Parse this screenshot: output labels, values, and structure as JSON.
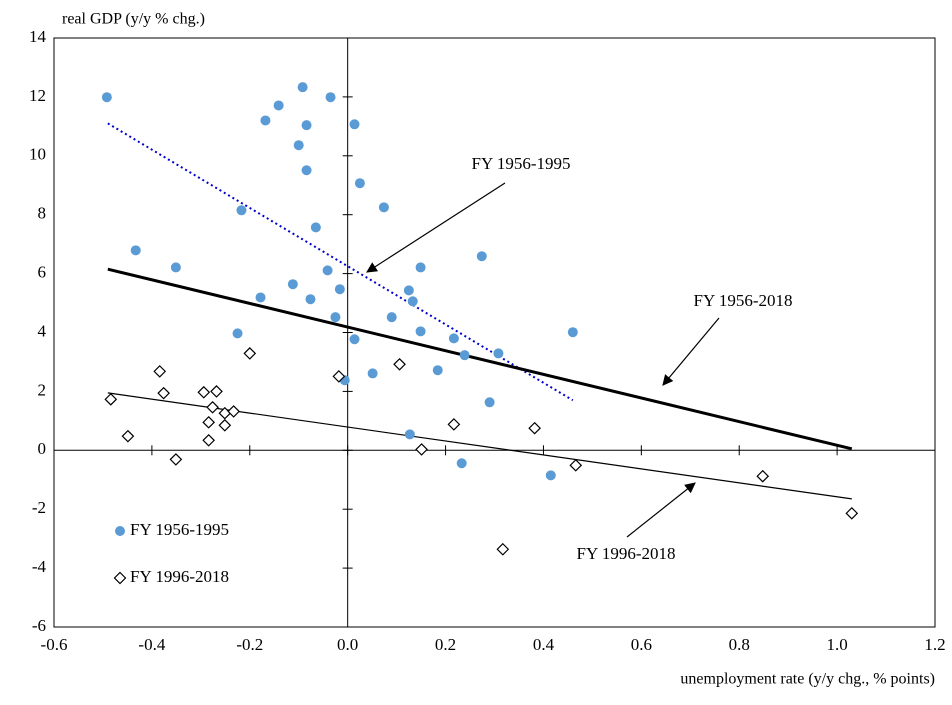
{
  "chart_data": {
    "type": "scatter",
    "y_label": "real GDP (y/y  % chg.)",
    "x_label": "unemployment rate (y/y chg., % points)",
    "xlim": [
      -0.6,
      1.2
    ],
    "xticks": [
      -0.6,
      -0.4,
      -0.2,
      {
        "value": 0,
        "label": "0.0"
      },
      0.2,
      0.4,
      0.6,
      0.8,
      {
        "value": 1,
        "label": "1.0"
      },
      1.2
    ],
    "ylim": [
      -6,
      14
    ],
    "yticks": [
      -6,
      -4,
      -2,
      0,
      2,
      4,
      6,
      8,
      10,
      12,
      14
    ],
    "legend": "lower left",
    "series": [
      {
        "name": "FY 1956-1995",
        "color": "#5b9bd5",
        "marker": "circle",
        "x": [
          -0.492,
          -0.433,
          -0.351,
          -0.225,
          -0.217,
          -0.178,
          -0.168,
          -0.141,
          -0.112,
          -0.1,
          -0.092,
          -0.084,
          -0.084,
          -0.076,
          -0.065,
          -0.041,
          -0.035,
          -0.025,
          -0.016,
          -0.006,
          0.014,
          0.014,
          0.025,
          0.051,
          0.074,
          0.09,
          0.125,
          0.133,
          0.149,
          0.149,
          0.127,
          0.184,
          0.217,
          0.239,
          0.233,
          0.274,
          0.29,
          0.308,
          0.415,
          0.46
        ],
        "values": [
          11.99,
          6.79,
          6.21,
          3.97,
          8.15,
          5.19,
          11.2,
          11.71,
          5.64,
          10.36,
          12.33,
          11.04,
          9.51,
          5.13,
          7.57,
          6.11,
          11.99,
          4.52,
          5.47,
          2.38,
          11.07,
          3.77,
          9.07,
          2.61,
          8.25,
          4.52,
          5.43,
          5.06,
          6.21,
          4.04,
          0.54,
          2.72,
          3.8,
          3.23,
          -0.44,
          6.59,
          1.63,
          3.29,
          -0.85,
          4.01
        ]
      },
      {
        "name": "FY 1996-2018",
        "color": "#000000",
        "marker": "diamond",
        "x": [
          -0.484,
          -0.449,
          -0.384,
          -0.376,
          -0.351,
          -0.294,
          -0.284,
          -0.284,
          -0.276,
          -0.268,
          -0.251,
          -0.251,
          -0.233,
          -0.2,
          -0.018,
          0.106,
          0.151,
          0.217,
          0.317,
          0.382,
          0.466,
          0.848,
          1.03
        ],
        "values": [
          1.73,
          0.48,
          2.68,
          1.94,
          -0.31,
          1.97,
          0.95,
          0.34,
          1.46,
          2.0,
          0.85,
          1.26,
          1.32,
          3.29,
          2.51,
          2.92,
          0.03,
          0.88,
          -3.36,
          0.75,
          -0.51,
          -0.88,
          -2.14
        ]
      }
    ],
    "trendlines": [
      {
        "color": "#0000cc",
        "style": "dotted",
        "width": 2,
        "x": [
          -0.49,
          0.46
        ],
        "values": [
          11.1,
          1.7
        ]
      },
      {
        "color": "#000000",
        "style": "solid",
        "width": 3,
        "x": [
          -0.49,
          1.03
        ],
        "values": [
          6.15,
          0.05
        ]
      },
      {
        "color": "#000000",
        "style": "solid",
        "width": 1.2,
        "x": [
          -0.49,
          1.03
        ],
        "values": [
          1.95,
          -1.65
        ]
      }
    ],
    "annotations": [
      "FY 1956-1995",
      "FY 1956-2018",
      "FY 1996-2018"
    ]
  }
}
